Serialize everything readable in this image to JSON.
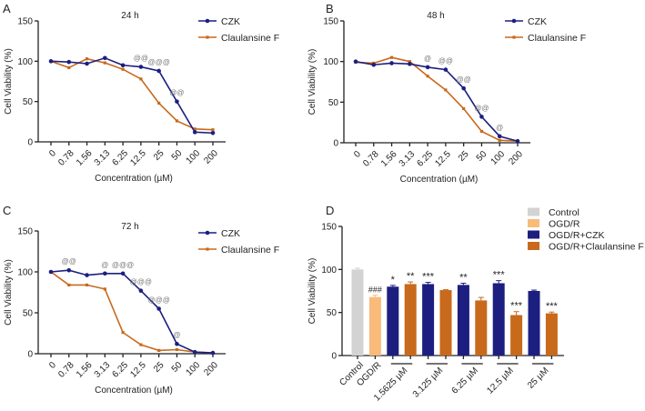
{
  "colors": {
    "czk": "#1c1f7f",
    "claulansine_f": "#c8691c",
    "control": "#d3d3d3",
    "ogdr": "#f8bb7a"
  },
  "chart_data": [
    {
      "panel": "A",
      "type": "line",
      "title": "24 h",
      "xlabel": "Concentration (µM)",
      "ylabel": "Cell Viability (%)",
      "categories": [
        "0",
        "0.78",
        "1.56",
        "3.13",
        "6.25",
        "12.5",
        "25",
        "50",
        "100",
        "200"
      ],
      "ylim": [
        0,
        150
      ],
      "yticks": [
        0,
        50,
        100,
        150
      ],
      "legend": "top-right",
      "series": [
        {
          "name": "CZK",
          "values": [
            100,
            99,
            97,
            104,
            95,
            93,
            88,
            50,
            12,
            11
          ]
        },
        {
          "name": "Claulansine F",
          "values": [
            100,
            92,
            103,
            98,
            90,
            78,
            48,
            26,
            16,
            15
          ]
        }
      ],
      "annotations": [
        {
          "x": "12.5",
          "text": "@@"
        },
        {
          "x": "25",
          "text": "@@@"
        },
        {
          "x": "50",
          "text": "@@"
        }
      ]
    },
    {
      "panel": "B",
      "type": "line",
      "title": "48 h",
      "xlabel": "Concentration (µM)",
      "ylabel": "Cell Viability (%)",
      "categories": [
        "0",
        "0.78",
        "1.56",
        "3.13",
        "6.25",
        "12.5",
        "25",
        "50",
        "100",
        "200"
      ],
      "ylim": [
        0,
        150
      ],
      "yticks": [
        0,
        50,
        100,
        150
      ],
      "legend": "top-right",
      "series": [
        {
          "name": "CZK",
          "values": [
            100,
            96,
            98,
            97,
            93,
            90,
            67,
            32,
            8,
            2
          ]
        },
        {
          "name": "Claulansine F",
          "values": [
            99,
            98,
            105,
            100,
            82,
            65,
            42,
            14,
            3,
            2
          ]
        }
      ],
      "annotations": [
        {
          "x": "6.25",
          "text": "@"
        },
        {
          "x": "12.5",
          "text": "@@"
        },
        {
          "x": "25",
          "text": "@@"
        },
        {
          "x": "50",
          "text": "@@"
        },
        {
          "x": "100",
          "text": "@"
        }
      ]
    },
    {
      "panel": "C",
      "type": "line",
      "title": "72 h",
      "xlabel": "Concentration (µM)",
      "ylabel": "Cell Viability (%)",
      "categories": [
        "0",
        "0.78",
        "1.56",
        "3.13",
        "6.25",
        "12.5",
        "25",
        "50",
        "100",
        "200"
      ],
      "ylim": [
        0,
        150
      ],
      "yticks": [
        0,
        50,
        100,
        150
      ],
      "legend": "top-right",
      "series": [
        {
          "name": "CZK",
          "values": [
            100,
            102,
            96,
            98,
            98,
            77,
            55,
            12,
            2,
            1
          ]
        },
        {
          "name": "Claulansine F",
          "values": [
            100,
            84,
            84,
            79,
            26,
            11,
            4,
            5,
            2,
            1
          ]
        }
      ],
      "annotations": [
        {
          "x": "0.78",
          "text": "@@"
        },
        {
          "x": "3.13",
          "text": "@"
        },
        {
          "x": "6.25",
          "text": "@@@"
        },
        {
          "x": "12.5",
          "text": "@@@"
        },
        {
          "x": "25",
          "text": "@@@"
        },
        {
          "x": "50",
          "text": "@"
        }
      ]
    },
    {
      "panel": "D",
      "type": "bar",
      "ylabel": "Cell Viability (%)",
      "ylim": [
        0,
        150
      ],
      "yticks": [
        0,
        50,
        100,
        150
      ],
      "legend": "top-right",
      "legend_entries": [
        "Control",
        "OGD/R",
        "OGD/R+CZK",
        "OGD/R+Claulansine F"
      ],
      "group_labels": [
        "Control",
        "OGD/R",
        "1.5625 µM",
        "3.125 µM",
        "6.25 µM",
        "12.5 µM",
        "25 µM"
      ],
      "bars": [
        {
          "group": "Control",
          "series": "Control",
          "value": 100,
          "err": 1.5,
          "mark": ""
        },
        {
          "group": "OGD/R",
          "series": "OGD/R",
          "value": 68,
          "err": 2,
          "mark": "###"
        },
        {
          "group": "1.5625 µM",
          "series": "OGD/R+CZK",
          "value": 80,
          "err": 1.5,
          "mark": "*"
        },
        {
          "group": "1.5625 µM",
          "series": "OGD/R+Claulansine F",
          "value": 83,
          "err": 2.5,
          "mark": "**"
        },
        {
          "group": "3.125 µM",
          "series": "OGD/R+CZK",
          "value": 83,
          "err": 2,
          "mark": "***"
        },
        {
          "group": "3.125 µM",
          "series": "OGD/R+Claulansine F",
          "value": 76,
          "err": 0.5,
          "mark": ""
        },
        {
          "group": "6.25 µM",
          "series": "OGD/R+CZK",
          "value": 82,
          "err": 2,
          "mark": "**"
        },
        {
          "group": "6.25 µM",
          "series": "OGD/R+Claulansine F",
          "value": 64,
          "err": 3.5,
          "mark": ""
        },
        {
          "group": "12.5 µM",
          "series": "OGD/R+CZK",
          "value": 84,
          "err": 3,
          "mark": "***"
        },
        {
          "group": "12.5 µM",
          "series": "OGD/R+Claulansine F",
          "value": 47,
          "err": 4,
          "mark": "***"
        },
        {
          "group": "25 µM",
          "series": "OGD/R+CZK",
          "value": 75,
          "err": 1,
          "mark": ""
        },
        {
          "group": "25 µM",
          "series": "OGD/R+Claulansine F",
          "value": 49,
          "err": 1.5,
          "mark": "***"
        }
      ]
    }
  ]
}
